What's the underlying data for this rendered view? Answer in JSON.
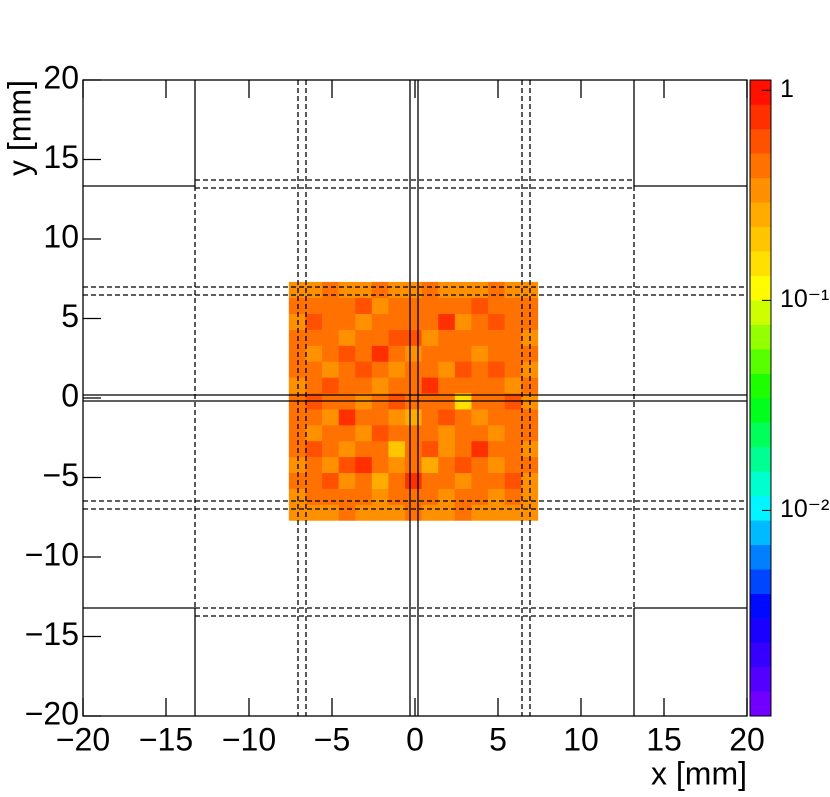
{
  "chart_data": {
    "type": "heatmap",
    "xlabel": "x [mm]",
    "ylabel": "y [mm]",
    "xlim": [
      -20,
      20
    ],
    "ylim": [
      -20,
      20
    ],
    "zlim": [
      0.00105,
      1.12
    ],
    "zlog": true,
    "xticks": [
      {
        "value": -20,
        "label": "−20"
      },
      {
        "value": -15,
        "label": "−15"
      },
      {
        "value": -10,
        "label": "−10"
      },
      {
        "value": -5,
        "label": "−5"
      },
      0,
      5,
      10,
      15,
      20
    ],
    "yticks": [
      {
        "value": -20,
        "label": "−20"
      },
      {
        "value": -15,
        "label": "−15"
      },
      {
        "value": -10,
        "label": "−10"
      },
      {
        "value": -5,
        "label": "−5"
      },
      0,
      5,
      10,
      15,
      20
    ],
    "zticks": [
      1,
      {
        "value": 0.1,
        "label": "10⁻¹"
      },
      {
        "value": 0.01,
        "label": "10⁻²"
      }
    ],
    "palette": [
      "#8000ff",
      "#0000ff",
      "#00ffff",
      "#00ff00",
      "#ffff00",
      "#ff8c00",
      "#ff0000"
    ],
    "xbins": [
      -7.6,
      -6.6,
      -5.6,
      -4.6,
      -3.6,
      -2.6,
      -1.6,
      -0.6,
      0.4,
      1.4,
      2.4,
      3.4,
      4.4,
      5.4,
      6.4,
      7.4
    ],
    "ybins": [
      -7.7,
      -6.7,
      -5.7,
      -4.7,
      -3.7,
      -2.7,
      -1.7,
      -0.7,
      0.3,
      1.3,
      2.3,
      3.3,
      4.3,
      5.3,
      6.3,
      7.3
    ],
    "z": [
      [
        0.3,
        0.35,
        0.3,
        0.4,
        0.35,
        0.3,
        0.35,
        0.4,
        0.35,
        0.3,
        0.4,
        0.35,
        0.3,
        0.35,
        0.3
      ],
      [
        0.35,
        0.45,
        0.4,
        0.5,
        0.4,
        0.3,
        0.45,
        0.4,
        0.5,
        0.35,
        0.4,
        0.45,
        0.3,
        0.4,
        0.35
      ],
      [
        0.4,
        0.5,
        0.6,
        0.35,
        0.45,
        0.25,
        0.5,
        0.7,
        0.4,
        0.45,
        0.35,
        0.5,
        0.45,
        0.6,
        0.35
      ],
      [
        0.35,
        0.45,
        0.3,
        0.55,
        0.7,
        0.4,
        0.35,
        0.45,
        0.25,
        0.5,
        0.6,
        0.4,
        0.35,
        0.45,
        0.4
      ],
      [
        0.45,
        0.6,
        0.4,
        0.35,
        0.5,
        0.45,
        0.2,
        0.4,
        0.55,
        0.35,
        0.45,
        0.7,
        0.4,
        0.5,
        0.35
      ],
      [
        0.4,
        0.35,
        0.5,
        0.45,
        0.3,
        0.6,
        0.45,
        0.5,
        0.4,
        0.3,
        0.5,
        0.45,
        0.35,
        0.4,
        0.45
      ],
      [
        0.5,
        0.45,
        0.35,
        0.7,
        0.4,
        0.45,
        0.35,
        0.25,
        0.45,
        0.6,
        0.4,
        0.35,
        0.5,
        0.45,
        0.4
      ],
      [
        0.4,
        0.55,
        0.45,
        0.4,
        0.35,
        0.5,
        0.6,
        0.45,
        0.5,
        0.4,
        0.15,
        0.45,
        0.4,
        0.55,
        0.35
      ],
      [
        0.35,
        0.4,
        0.6,
        0.45,
        0.5,
        0.35,
        0.45,
        0.4,
        0.7,
        0.45,
        0.4,
        0.5,
        0.45,
        0.35,
        0.4
      ],
      [
        0.45,
        0.5,
        0.35,
        0.4,
        0.6,
        0.45,
        0.3,
        0.5,
        0.4,
        0.35,
        0.55,
        0.4,
        0.6,
        0.45,
        0.35
      ],
      [
        0.4,
        0.35,
        0.45,
        0.55,
        0.4,
        0.7,
        0.45,
        0.35,
        0.45,
        0.5,
        0.4,
        0.3,
        0.45,
        0.4,
        0.5
      ],
      [
        0.5,
        0.45,
        0.4,
        0.3,
        0.45,
        0.4,
        0.55,
        0.6,
        0.35,
        0.45,
        0.5,
        0.45,
        0.4,
        0.5,
        0.35
      ],
      [
        0.35,
        0.6,
        0.45,
        0.5,
        0.35,
        0.45,
        0.4,
        0.45,
        0.5,
        0.7,
        0.35,
        0.45,
        0.55,
        0.4,
        0.45
      ],
      [
        0.45,
        0.4,
        0.5,
        0.45,
        0.6,
        0.35,
        0.5,
        0.4,
        0.45,
        0.4,
        0.45,
        0.6,
        0.4,
        0.45,
        0.4
      ],
      [
        0.3,
        0.35,
        0.4,
        0.35,
        0.3,
        0.4,
        0.35,
        0.3,
        0.4,
        0.35,
        0.3,
        0.35,
        0.4,
        0.3,
        0.35
      ]
    ]
  }
}
